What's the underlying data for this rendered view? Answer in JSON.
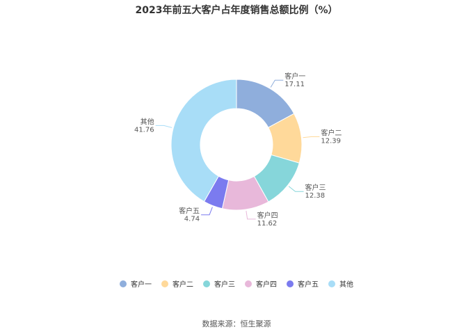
{
  "chart_data": {
    "type": "pie",
    "title": "2023年前五大客户占年度销售总额比例（%）",
    "slices": [
      {
        "name": "客户一",
        "value": 17.11,
        "value_label": "17.11",
        "color": "#8FAEDC"
      },
      {
        "name": "客户二",
        "value": 12.39,
        "value_label": "12.39",
        "color": "#FFD99A"
      },
      {
        "name": "客户三",
        "value": 12.38,
        "value_label": "12.38",
        "color": "#86D6DA"
      },
      {
        "name": "客户四",
        "value": 11.62,
        "value_label": "11.62",
        "color": "#E8B8DA"
      },
      {
        "name": "客户五",
        "value": 4.74,
        "value_label": "4.74",
        "color": "#7B7BEF"
      },
      {
        "name": "其他",
        "value": 41.76,
        "value_label": "41.76",
        "color": "#A8DDF7"
      }
    ],
    "donut": true,
    "legend_position": "bottom"
  },
  "source": "数据来源：恒生聚源"
}
